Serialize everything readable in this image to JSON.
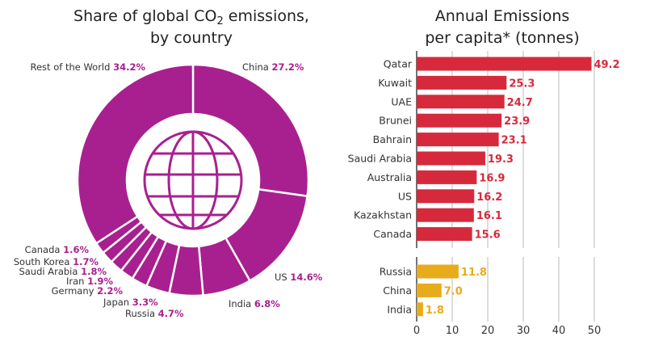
{
  "chart_data": [
    {
      "type": "pie",
      "title": "Share of global CO2 emissions, by country",
      "title_line1_pre": "Share of global CO",
      "title_sub": "2",
      "title_line1_post": " emissions,",
      "title_line2": "by country",
      "center_icon": "globe-icon",
      "color": "#a8208f",
      "slices": [
        {
          "label": "China",
          "value": 27.2,
          "text": "27.2%"
        },
        {
          "label": "US",
          "value": 14.6,
          "text": "14.6%"
        },
        {
          "label": "India",
          "value": 6.8,
          "text": "6.8%"
        },
        {
          "label": "Russia",
          "value": 4.7,
          "text": "4.7%"
        },
        {
          "label": "Japan",
          "value": 3.3,
          "text": "3.3%"
        },
        {
          "label": "Germany",
          "value": 2.2,
          "text": "2.2%"
        },
        {
          "label": "Iran",
          "value": 1.9,
          "text": "1.9%"
        },
        {
          "label": "Saudi Arabia",
          "value": 1.8,
          "text": "1.8%"
        },
        {
          "label": "South Korea",
          "value": 1.7,
          "text": "1.7%"
        },
        {
          "label": "Canada",
          "value": 1.6,
          "text": "1.6%"
        },
        {
          "label": "Rest of the World",
          "value": 34.2,
          "text": "34.2%"
        }
      ]
    },
    {
      "type": "bar",
      "orientation": "horizontal",
      "title": "Annual Emissions per capita* (tonnes)",
      "title_line1": "Annual Emissions",
      "title_line2": "per capita* (tonnes)",
      "xlim": [
        0,
        50
      ],
      "xticks": [
        0,
        10,
        20,
        30,
        40,
        50
      ],
      "grid": true,
      "groups": [
        {
          "color": "#d62a3c",
          "categories": [
            "Qatar",
            "Kuwait",
            "UAE",
            "Brunei",
            "Bahrain",
            "Saudi Arabia",
            "Australia",
            "US",
            "Kazakhstan",
            "Canada"
          ],
          "values": [
            49.2,
            25.3,
            24.7,
            23.9,
            23.1,
            19.3,
            16.9,
            16.2,
            16.1,
            15.6
          ],
          "labels": [
            "49.2",
            "25.3",
            "24.7",
            "23.9",
            "23.1",
            "19.3",
            "16.9",
            "16.2",
            "16.1",
            "15.6"
          ]
        },
        {
          "color": "#e8ab1c",
          "categories": [
            "Russia",
            "China",
            "India"
          ],
          "values": [
            11.8,
            7.0,
            1.8
          ],
          "labels": [
            "11.8",
            "7.0",
            "1.8"
          ]
        }
      ]
    }
  ]
}
